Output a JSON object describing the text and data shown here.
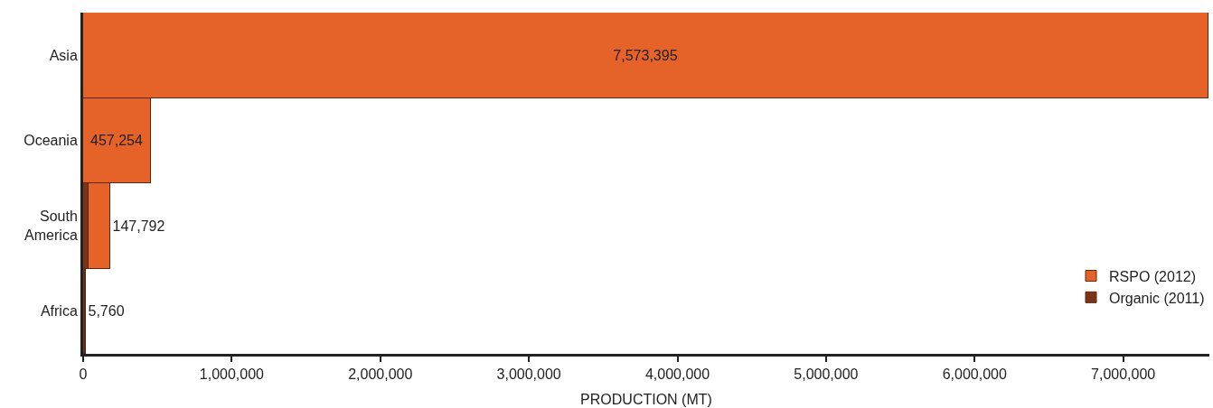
{
  "chart_data": {
    "type": "bar",
    "orientation": "horizontal",
    "stacked": true,
    "xlabel": "PRODUCTION (MT)",
    "categories": [
      "Asia",
      "Oceania",
      "South\nAmerica",
      "Africa"
    ],
    "series": [
      {
        "name": "Organic (2011)",
        "color": "#7a3418",
        "values": [
          null,
          null,
          36000,
          10000
        ]
      },
      {
        "name": "RSPO (2012)",
        "color": "#e56228",
        "values": [
          7573395,
          457254,
          147792,
          5760
        ],
        "value_labels": [
          "7,573,395",
          "457,254",
          "147,792",
          "5,760"
        ]
      }
    ],
    "xlim": [
      0,
      7580000
    ],
    "xticks": [
      {
        "value": 0,
        "label": "0"
      },
      {
        "value": 1000000,
        "label": "1,000,000"
      },
      {
        "value": 2000000,
        "label": "2,000,000"
      },
      {
        "value": 3000000,
        "label": "3,000,000"
      },
      {
        "value": 4000000,
        "label": "4,000,000"
      },
      {
        "value": 5000000,
        "label": "5,000,000"
      },
      {
        "value": 6000000,
        "label": "6,000,000"
      },
      {
        "value": 7000000,
        "label": "7,000,000"
      }
    ],
    "legend": "bottom right"
  }
}
